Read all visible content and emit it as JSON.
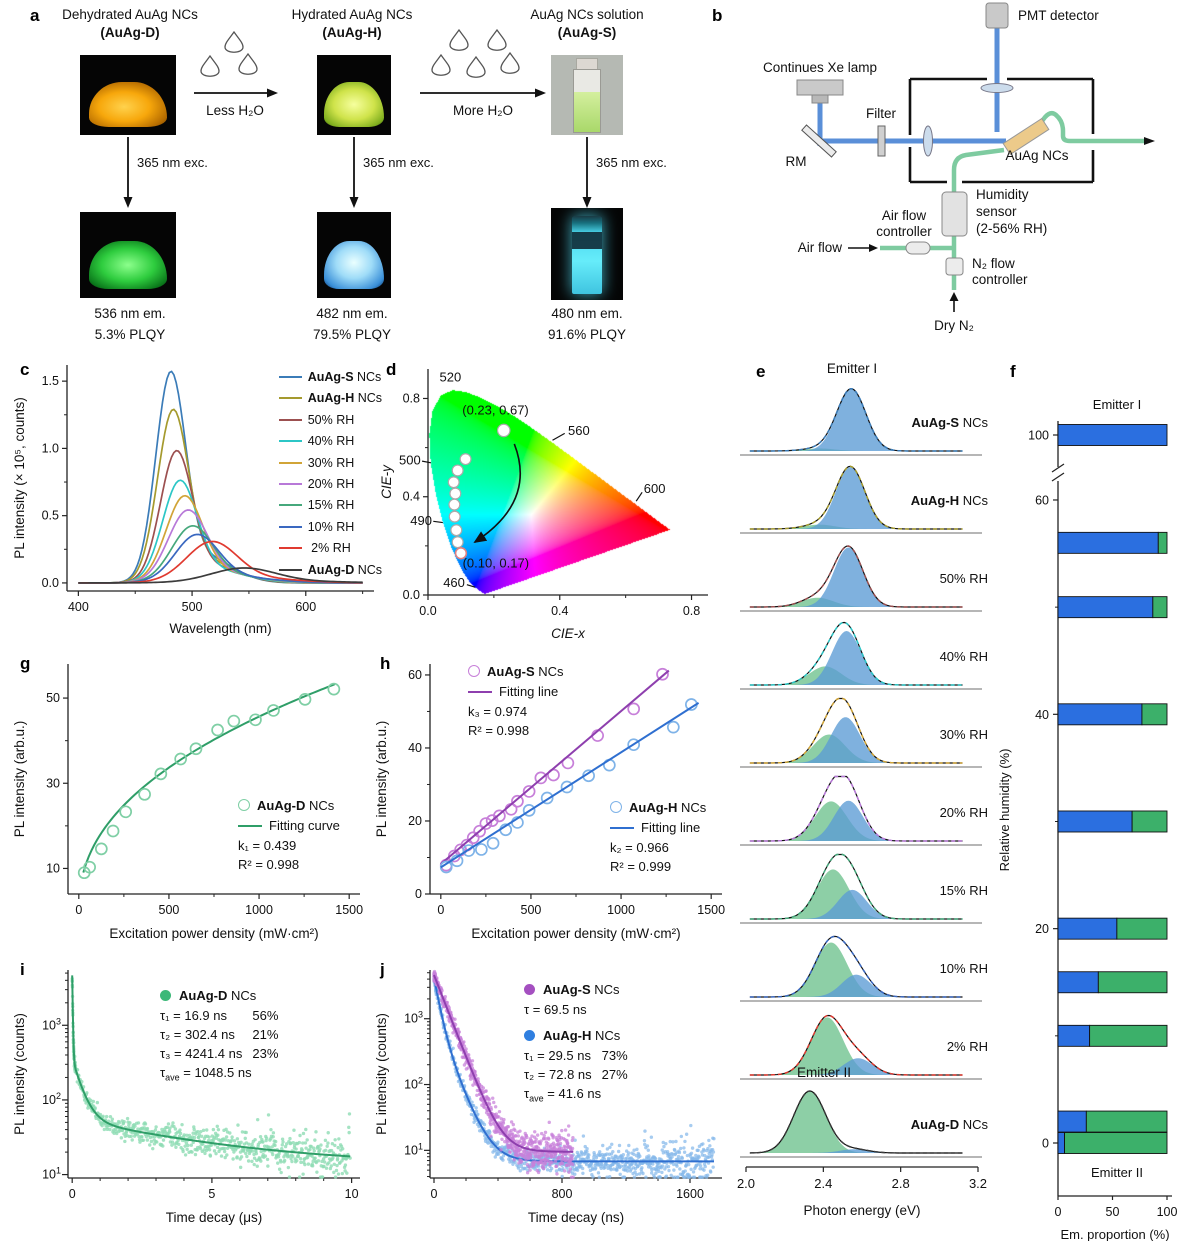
{
  "panels": {
    "a": {
      "label": "a",
      "columns": [
        {
          "title": "Dehydrated AuAg NCs",
          "subtitle": "(AuAg-D)",
          "exc": "365 nm exc.",
          "em": "536 nm em.",
          "plqy": "5.3% PLQY"
        },
        {
          "title": "Hydrated AuAg NCs",
          "subtitle": "(AuAg-H)",
          "exc": "365 nm exc.",
          "em": "482 nm em.",
          "plqy": "79.5% PLQY"
        },
        {
          "title": "AuAg NCs solution",
          "subtitle": "(AuAg-S)",
          "exc": "365 nm exc.",
          "em": "480 nm em.",
          "plqy": "91.6% PLQY"
        }
      ],
      "transitions": [
        {
          "label": "Less H₂O",
          "drops": 3
        },
        {
          "label": "More H₂O",
          "drops": 5
        }
      ]
    },
    "b": {
      "label": "b",
      "labels": {
        "pmt": "PMT detector",
        "lamp": "Continues Xe lamp",
        "filter": "Filter",
        "rm": "RM",
        "sample": "AuAg NCs",
        "hum1": "Humidity",
        "hum2": "sensor",
        "hum3": "(2-56% RH)",
        "afc1": "Air flow",
        "afc2": "controller",
        "airflow": "Air flow",
        "n2c1": "N₂ flow",
        "n2c2": "controller",
        "dryn2": "Dry N₂"
      }
    },
    "c": {
      "label": "c"
    },
    "d": {
      "label": "d"
    },
    "e": {
      "label": "e"
    },
    "f": {
      "label": "f"
    },
    "g": {
      "label": "g"
    },
    "h": {
      "label": "h"
    },
    "i": {
      "label": "i"
    },
    "j": {
      "label": "j"
    }
  },
  "chart_data": [
    {
      "panel": "c",
      "type": "line",
      "xlabel": "Wavelength (nm)",
      "ylabel": "PL intensity (× 10⁵, counts)",
      "xlim": [
        390,
        660
      ],
      "xticks": [
        400,
        500,
        600
      ],
      "xminor": [
        450,
        550,
        650
      ],
      "ylim": [
        -0.06,
        1.62
      ],
      "yticks": [
        0.0,
        0.5,
        1.0,
        1.5
      ],
      "yminor": [
        0.25,
        0.75,
        1.25
      ],
      "series": [
        {
          "name_bold": "AuAg-S",
          "name_rest": " NCs",
          "color": "#3b7cb8",
          "peak": [
            481,
            1.48,
            13
          ]
        },
        {
          "name_bold": "AuAg-H",
          "name_rest": " NCs",
          "color": "#a59a2e",
          "peak": [
            483,
            1.21,
            13.5
          ]
        },
        {
          "name_bold": "",
          "name_rest": "50% RH",
          "color": "#9c5050",
          "peak": [
            486,
            0.92,
            14
          ]
        },
        {
          "name_bold": "",
          "name_rest": "40% RH",
          "color": "#2cc6c6",
          "peak": [
            489,
            0.71,
            15
          ]
        },
        {
          "name_bold": "",
          "name_rest": "30% RH",
          "color": "#d1a437",
          "peak": [
            493,
            0.6,
            16
          ]
        },
        {
          "name_bold": "",
          "name_rest": "20% RH",
          "color": "#b879d8",
          "peak": [
            496,
            0.5,
            17
          ]
        },
        {
          "name_bold": "",
          "name_rest": "15% RH",
          "color": "#46a87c",
          "peak": [
            500,
            0.39,
            18
          ]
        },
        {
          "name_bold": "",
          "name_rest": "10% RH",
          "color": "#3a68c0",
          "peak": [
            504,
            0.33,
            19
          ]
        },
        {
          "name_bold": "",
          "name_rest": " 2% RH",
          "color": "#e03a30",
          "peak": [
            517,
            0.28,
            22
          ]
        },
        {
          "name_bold": "AuAg-D",
          "name_rest": " NCs",
          "color": "#3c3c3c",
          "peak": [
            545,
            0.1,
            28
          ]
        }
      ]
    },
    {
      "panel": "d",
      "type": "scatter",
      "xlabel": "CIE-x",
      "ylabel": "CIE-y",
      "xlim": [
        0,
        0.85
      ],
      "xticks": [
        0.0,
        0.4,
        0.8
      ],
      "xminor": [
        0.2,
        0.6
      ],
      "ylim": [
        0,
        0.92
      ],
      "yticks": [
        0.0,
        0.4,
        0.8
      ],
      "yminor": [
        0.2,
        0.6
      ],
      "locus_labels": [
        {
          "t": "520",
          "x": 0.068,
          "y": 0.885,
          "anchor": "middle"
        },
        {
          "t": "560",
          "x": 0.425,
          "y": 0.668,
          "anchor": "start",
          "lead": [
            0.378,
            0.63,
            0.415,
            0.658
          ]
        },
        {
          "t": "600",
          "x": 0.655,
          "y": 0.432,
          "anchor": "start",
          "lead": [
            0.632,
            0.382,
            0.65,
            0.418
          ]
        },
        {
          "t": "500",
          "x": -0.022,
          "y": 0.548,
          "anchor": "end",
          "lead": [
            0.009,
            0.538,
            -0.018,
            0.545
          ]
        },
        {
          "t": "490",
          "x": 0.012,
          "y": 0.302,
          "anchor": "end",
          "lead": [
            0.045,
            0.295,
            0.016,
            0.3
          ]
        },
        {
          "t": "460",
          "x": 0.112,
          "y": 0.048,
          "anchor": "end",
          "lead": [
            0.143,
            0.032,
            0.118,
            0.042
          ]
        }
      ],
      "points": [
        [
          0.23,
          0.67
        ],
        [
          0.114,
          0.553
        ],
        [
          0.09,
          0.507
        ],
        [
          0.078,
          0.459
        ],
        [
          0.083,
          0.413
        ],
        [
          0.08,
          0.368
        ],
        [
          0.081,
          0.319
        ],
        [
          0.086,
          0.264
        ],
        [
          0.09,
          0.215
        ],
        [
          0.1,
          0.17
        ]
      ],
      "ann_start": "(0.23, 0.67)",
      "ann_end": "(0.10, 0.17)"
    },
    {
      "panel": "e",
      "type": "area",
      "xlabel": "Photon energy (eV)",
      "xlim": [
        2.0,
        3.2
      ],
      "xticks": [
        2.0,
        2.4,
        2.8,
        3.2
      ],
      "emitter1_label": "Emitter I",
      "emitter2_label": "Emitter II",
      "emitter1_color": "#3b7cb8",
      "emitter2_color": "#3cb06a",
      "sigma_g": 0.083,
      "sigma_b": 0.075,
      "rows": [
        {
          "bold": "AuAg-S",
          "rest": " NCs",
          "color": "#3b7cb8",
          "green": [
            0.04,
            2.38
          ],
          "blue": [
            1.0,
            2.545
          ]
        },
        {
          "bold": "AuAg-H",
          "rest": " NCs",
          "color": "#a59a2e",
          "green": [
            0.07,
            2.38
          ],
          "blue": [
            1.0,
            2.54
          ]
        },
        {
          "bold": "",
          "rest": "50% RH",
          "color": "#9c5050",
          "green": [
            0.15,
            2.37
          ],
          "blue": [
            0.96,
            2.53
          ]
        },
        {
          "bold": "",
          "rest": "40% RH",
          "color": "#2cc6c6",
          "green": [
            0.3,
            2.41
          ],
          "blue": [
            0.87,
            2.52
          ]
        },
        {
          "bold": "",
          "rest": "30% RH",
          "color": "#d1a437",
          "green": [
            0.46,
            2.43
          ],
          "blue": [
            0.74,
            2.515
          ]
        },
        {
          "bold": "",
          "rest": "20% RH",
          "color": "#b879d8",
          "green": [
            0.64,
            2.44
          ],
          "blue": [
            0.65,
            2.53
          ]
        },
        {
          "bold": "",
          "rest": "15% RH",
          "color": "#46a87c",
          "green": [
            0.8,
            2.45
          ],
          "blue": [
            0.47,
            2.55
          ]
        },
        {
          "bold": "",
          "rest": "10% RH",
          "color": "#3a68c0",
          "green": [
            0.88,
            2.44
          ],
          "blue": [
            0.36,
            2.57
          ]
        },
        {
          "bold": "",
          "rest": "2% RH",
          "color": "#e03a30",
          "green": [
            0.93,
            2.42
          ],
          "blue": [
            0.27,
            2.58
          ]
        },
        {
          "bold": "AuAg-D",
          "rest": " NCs",
          "color": "#3c3c3c",
          "green": [
            1.0,
            2.33
          ],
          "blue": [
            0.06,
            2.56
          ]
        }
      ]
    },
    {
      "panel": "f",
      "type": "bar",
      "xlabel": "Em. proportion (%)",
      "ylabel": "Relative humidity (%)",
      "xticks": [
        0,
        50,
        100
      ],
      "ytick_labels": [
        100,
        60,
        40,
        20,
        0
      ],
      "series": [
        {
          "name": "Emitter I",
          "color": "#2b6fe0"
        },
        {
          "name": "Emitter II",
          "color": "#3cb06a"
        }
      ],
      "bars": [
        {
          "rh": 100,
          "em1": 100,
          "em2": 0
        },
        {
          "rh": 56,
          "em1": 92,
          "em2": 8
        },
        {
          "rh": 50,
          "em1": 87,
          "em2": 13
        },
        {
          "rh": 40,
          "em1": 77,
          "em2": 23
        },
        {
          "rh": 30,
          "em1": 68,
          "em2": 32
        },
        {
          "rh": 20,
          "em1": 54,
          "em2": 46
        },
        {
          "rh": 15,
          "em1": 37,
          "em2": 63
        },
        {
          "rh": 10,
          "em1": 29,
          "em2": 71
        },
        {
          "rh": 2,
          "em1": 26,
          "em2": 74
        },
        {
          "rh": 0,
          "em1": 6,
          "em2": 94
        }
      ]
    },
    {
      "panel": "g",
      "type": "scatter",
      "xlabel": "Excitation power density (mW·cm²)",
      "ylabel": "PL intensity (arb.u.)",
      "xlim": [
        -60,
        1560
      ],
      "xticks": [
        0,
        500,
        1000,
        1500
      ],
      "xminor": [
        250,
        750,
        1250
      ],
      "ylim": [
        4,
        58
      ],
      "yticks": [
        10,
        30,
        50
      ],
      "yminor": [
        20,
        40
      ],
      "legend": {
        "bold": "AuAg-D",
        "rest": " NCs",
        "fit": "Fitting curve",
        "k": "k₁ = 0.439",
        "r2": "R² = 0.998"
      },
      "color": "#7fcfa5",
      "fit_color": "#2f9e68",
      "fit_a": 2.2,
      "fit_k": 0.439,
      "points": [
        [
          30,
          9
        ],
        [
          60,
          10.3
        ],
        [
          125,
          14.6
        ],
        [
          190,
          18.8
        ],
        [
          260,
          23.3
        ],
        [
          365,
          27.4
        ],
        [
          455,
          32.2
        ],
        [
          565,
          35.7
        ],
        [
          650,
          38.1
        ],
        [
          770,
          42.5
        ],
        [
          860,
          44.6
        ],
        [
          980,
          44.9
        ],
        [
          1080,
          47.1
        ],
        [
          1255,
          49.7
        ],
        [
          1415,
          52.1
        ]
      ]
    },
    {
      "panel": "h",
      "type": "scatter",
      "xlabel": "Excitation power density (mW·cm²)",
      "ylabel": "PL intensity (arb.u.)",
      "xlim": [
        -60,
        1560
      ],
      "xticks": [
        0,
        500,
        1000,
        1500
      ],
      "xminor": [
        250,
        750,
        1250
      ],
      "ylim": [
        0,
        63
      ],
      "yticks": [
        0,
        20,
        40,
        60
      ],
      "yminor": [
        10,
        30,
        50
      ],
      "series": [
        {
          "bold": "AuAg-S",
          "rest": " NCs",
          "fit": "Fitting line",
          "k": "k₃ = 0.974",
          "r2": "R² = 0.998",
          "color": "#c77fd9",
          "fit_color": "#8e3fae",
          "line": [
            8.2,
            0.0419,
            1265
          ],
          "points": [
            [
              30,
              7.9
            ],
            [
              75,
              10.4
            ],
            [
              110,
              12.1
            ],
            [
              145,
              13.4
            ],
            [
              180,
              15.4
            ],
            [
              215,
              17.2
            ],
            [
              250,
              19.3
            ],
            [
              285,
              20.1
            ],
            [
              325,
              21.4
            ],
            [
              390,
              23.2
            ],
            [
              425,
              25.4
            ],
            [
              490,
              28.1
            ],
            [
              555,
              31.8
            ],
            [
              625,
              32.6
            ],
            [
              705,
              35.9
            ],
            [
              870,
              43.4
            ],
            [
              1070,
              50.7
            ],
            [
              1230,
              60.2
            ]
          ]
        },
        {
          "bold": "AuAg-H",
          "rest": " NCs",
          "fit": "Fitting line",
          "k": "k₂ = 0.966",
          "r2": "R² = 0.999",
          "color": "#7fb3e8",
          "fit_color": "#2f6fd0",
          "line": [
            7.3,
            0.0315,
            1430
          ],
          "points": [
            [
              30,
              7.4
            ],
            [
              90,
              9.1
            ],
            [
              155,
              11.9
            ],
            [
              225,
              12.2
            ],
            [
              290,
              13.9
            ],
            [
              360,
              17.6
            ],
            [
              425,
              19.6
            ],
            [
              490,
              22.9
            ],
            [
              590,
              26.3
            ],
            [
              700,
              29.3
            ],
            [
              820,
              32.4
            ],
            [
              935,
              35.3
            ],
            [
              1070,
              40.9
            ],
            [
              1290,
              45.7
            ],
            [
              1390,
              51.9
            ]
          ]
        }
      ]
    },
    {
      "panel": "i",
      "type": "scatter-log",
      "xlabel": "Time decay (μs)",
      "ylabel": "PL intensity (counts)",
      "xlim": [
        -0.15,
        10.3
      ],
      "xticks": [
        0,
        5,
        10
      ],
      "xminor": [
        1,
        2,
        3,
        4,
        6,
        7,
        8,
        9
      ],
      "ylog": [
        9,
        5500
      ],
      "ylog_ticks": [
        1,
        2,
        3
      ],
      "legend": {
        "bold": "AuAg-D",
        "rest": " NCs"
      },
      "tau_lines": [
        [
          "τ₁ = 16.9 ns",
          "56%"
        ],
        [
          "τ₂ = 302.4 ns",
          "21%"
        ],
        [
          "τ₃ = 4241.4 ns",
          "23%"
        ]
      ],
      "tau_ave": {
        "pre": "τ",
        "sub": "ave",
        "post": " = 1048.5 ns"
      },
      "dot_color": "#3cb878",
      "color": "rgba(143,220,180,0.8)",
      "fit_color": "#2f9e68",
      "decay": {
        "A": [
          4300,
          300,
          42
        ],
        "tau": [
          0.0169,
          0.3024,
          4.2414
        ],
        "bg": 13.5,
        "tmax": 9.95,
        "n": 680
      }
    },
    {
      "panel": "j",
      "type": "scatter-log",
      "xlabel": "Time decay (ns)",
      "ylabel": "PL intensity (counts)",
      "xlim": [
        -25,
        1800
      ],
      "xticks": [
        0,
        800,
        1600
      ],
      "xminor": [
        200,
        400,
        600,
        1000,
        1200,
        1400
      ],
      "ylog": [
        3.8,
        5500
      ],
      "ylog_ticks": [
        1,
        2,
        3
      ],
      "series": [
        {
          "bold": "AuAg-S",
          "rest": " NCs",
          "tau_text": "τ = 69.5 ns",
          "dot_color": "#a44fc0",
          "color": "rgba(199,127,217,0.72)",
          "fit_color": "#8e3fae",
          "decay": {
            "A": [
              4600
            ],
            "tau": [
              69.5
            ],
            "bg": 9.5,
            "tmax": 870,
            "n": 740
          }
        },
        {
          "bold": "AuAg-H",
          "rest": " NCs",
          "tau_lines": [
            [
              "τ₁ = 29.5 ns",
              "73%"
            ],
            [
              "τ₂ = 72.8 ns",
              "27%"
            ]
          ],
          "tau_ave": {
            "pre": "τ",
            "sub": "ave",
            "post": " = 41.6 ns"
          },
          "dot_color": "#2f7fe0",
          "color": "rgba(133,184,234,0.72)",
          "fit_color": "#2f6fd0",
          "decay": {
            "A": [
              3300,
              950
            ],
            "tau": [
              29.5,
              72.8
            ],
            "bg": 6.8,
            "tmax": 1750,
            "n": 900
          }
        }
      ]
    }
  ]
}
